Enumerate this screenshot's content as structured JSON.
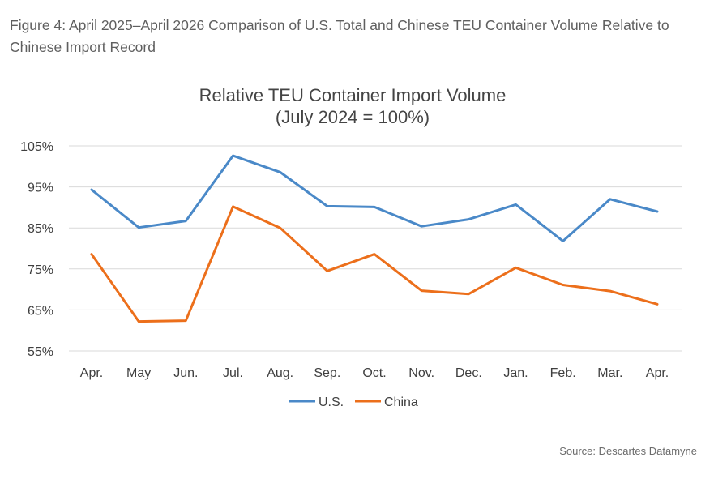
{
  "figure_caption": "Figure 4: April 2025–April 2026 Comparison of U.S. Total and Chinese TEU Container Volume Relative to Chinese Import Record",
  "source_note": "Source: Descartes Datamyne",
  "colors": {
    "us_series": "#4a89c8",
    "china_series": "#ec6f1b",
    "gridline": "#d9d9d9",
    "title_text": "#444444",
    "tick_text": "#3f3f3f"
  },
  "chart_data": {
    "type": "line",
    "title": "Relative TEU Container Import Volume",
    "subtitle": "(July 2024 = 100%)",
    "xlabel": "",
    "ylabel": "",
    "ylim": [
      55,
      105
    ],
    "y_ticks": [
      55,
      65,
      75,
      85,
      95,
      105
    ],
    "y_tick_labels": [
      "55%",
      "65%",
      "75%",
      "85%",
      "95%",
      "105%"
    ],
    "categories": [
      "Apr.",
      "May",
      "Jun.",
      "Jul.",
      "Aug.",
      "Sep.",
      "Oct.",
      "Nov.",
      "Dec.",
      "Jan.",
      "Feb.",
      "Mar.",
      "Apr."
    ],
    "series": [
      {
        "name": "U.S.",
        "color": "#4a89c8",
        "values": [
          94.3,
          85.1,
          86.7,
          102.6,
          98.6,
          90.3,
          90.1,
          85.4,
          87.1,
          90.7,
          81.8,
          92.0,
          89.0
        ]
      },
      {
        "name": "China",
        "color": "#ec6f1b",
        "values": [
          78.6,
          62.2,
          62.4,
          90.2,
          85.0,
          74.5,
          78.6,
          69.7,
          68.9,
          75.3,
          71.1,
          69.6,
          66.4
        ]
      }
    ],
    "grid": true,
    "legend_position": "bottom"
  }
}
